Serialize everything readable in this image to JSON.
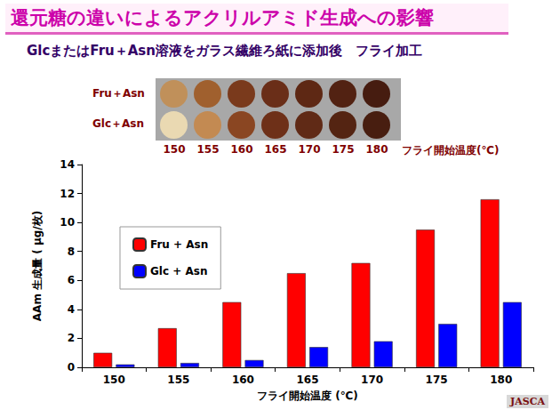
{
  "chart_data": {
    "type": "bar",
    "title": "還元糖の違いによるアクリルアミド生成への影響",
    "subtitle": "GlcまたはFru＋Asn溶液をガラス繊維ろ紙に添加後　フライ加工",
    "photo": {
      "rows": [
        "Fru＋Asn",
        "Glc＋Asn"
      ],
      "caption": "フライ開始温度(℃)"
    },
    "logo": "JASCA",
    "x_label": "フライ開始温度 (℃)",
    "y_label": "AAm 生成量 ( μg/枚)",
    "categories": [
      "150",
      "155",
      "160",
      "165",
      "170",
      "175",
      "180"
    ],
    "series": [
      {
        "name": "Fru + Asn",
        "color": "#ff0000",
        "values": [
          1.0,
          2.7,
          4.5,
          6.5,
          7.2,
          9.5,
          11.6
        ]
      },
      {
        "name": "Glc + Asn",
        "color": "#0000ff",
        "values": [
          0.2,
          0.3,
          0.5,
          1.4,
          1.8,
          3.0,
          4.5
        ]
      }
    ],
    "ylim": [
      0,
      14
    ],
    "yticks": [
      0,
      2,
      4,
      6,
      8,
      10,
      12,
      14
    ],
    "grid": false,
    "legend": "upper left",
    "data_labels": false
  }
}
